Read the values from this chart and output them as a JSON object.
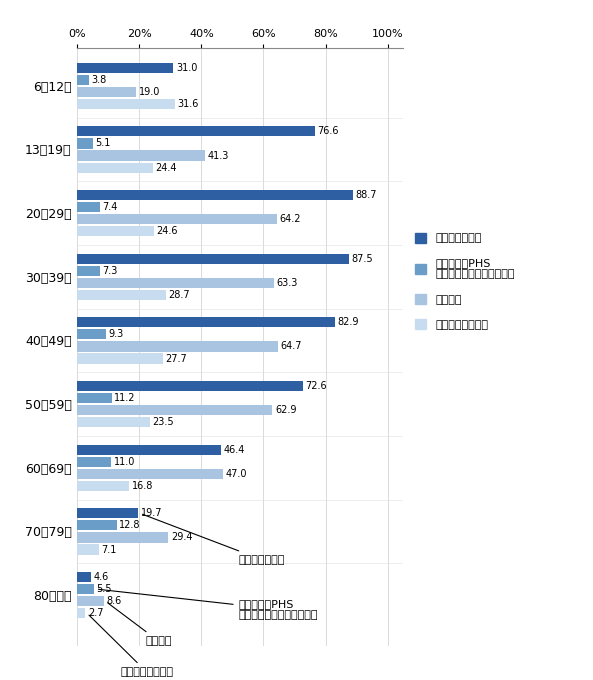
{
  "age_groups": [
    "6～12歳",
    "13～19歳",
    "20～29歳",
    "30～39歳",
    "40～49歳",
    "50～59歳",
    "60～69歳",
    "70～79歳",
    "80歳以上"
  ],
  "smartphone": [
    31.0,
    76.6,
    88.7,
    87.5,
    82.9,
    72.6,
    46.4,
    19.7,
    4.6
  ],
  "keitai": [
    3.8,
    5.1,
    7.4,
    7.3,
    9.3,
    11.2,
    11.0,
    12.8,
    5.5
  ],
  "pc": [
    19.0,
    41.3,
    64.2,
    63.3,
    64.7,
    62.9,
    47.0,
    29.4,
    8.6
  ],
  "tablet": [
    31.6,
    24.4,
    24.6,
    28.7,
    27.7,
    23.5,
    16.8,
    7.1,
    2.7
  ],
  "colors": {
    "smartphone": "#2E5FA3",
    "keitai": "#6A9DC8",
    "pc": "#A8C4E0",
    "tablet": "#C8DCF0"
  },
  "legend_labels": [
    "スマートフォン",
    "携帯電話・PHS\n（スマートフォンを除く）",
    "パソコン",
    "タブレット型端末"
  ],
  "annotation_smartphone": "スマートフォン",
  "annotation_keitai": "携帯電話・PHS\n（スマートフォンを除く）",
  "annotation_pc": "パソコン",
  "annotation_tablet": "タブレット型端末",
  "xlim": [
    0,
    105
  ],
  "xticks": [
    0,
    20,
    40,
    60,
    80,
    100
  ],
  "xticklabels": [
    "0%",
    "20%",
    "40%",
    "60%",
    "80%",
    "100%"
  ]
}
